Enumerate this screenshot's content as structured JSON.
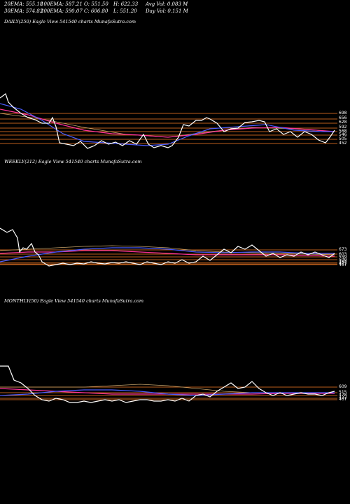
{
  "header": {
    "row1": {
      "ema20": "20EMA: 555.18",
      "ema100": "100EMA: 587.21",
      "open": "O: 551.50",
      "high": "H: 622.33",
      "avgvol": "Avg Vol: 0.083 M"
    },
    "row2": {
      "ema30": "30EMA: 574.83",
      "ema200": "200EMA: 590.07",
      "close": "C: 606.80",
      "low": "L: 551.20",
      "dayvol": "Day Vol: 0.151 M"
    }
  },
  "chart_data": [
    {
      "type": "line",
      "title": "DAILY(250) Eagle  View  541540  charts MunafaSutra.com",
      "levels": [
        "698",
        "656",
        "628",
        "592",
        "568",
        "546",
        "505",
        "452"
      ],
      "colors": {
        "price": "#ffffff",
        "ema_short": "#4a5cff",
        "ema_long": "#ff3399",
        "ema_mid": "#c8a46a",
        "level": "#d2691e"
      }
    },
    {
      "type": "line",
      "title": "WEEKLY(212) Eagle  View  541540  charts MunafaSutra.com",
      "levels": [
        "673",
        "603",
        "559",
        "509",
        "462",
        "427",
        "407"
      ],
      "colors": {
        "price": "#ffffff",
        "ema_short": "#4a5cff",
        "ema_long": "#ff3399",
        "ema_mid": "#c8a46a",
        "level": "#d2691e"
      }
    },
    {
      "type": "line",
      "title": "MONTHLY(50) Eagle  View  541540  charts MunafaSutra.com",
      "levels": [
        "609",
        "515",
        "478",
        "427",
        "407"
      ],
      "colors": {
        "price": "#ffffff",
        "ema_short": "#4a5cff",
        "ema_long": "#ff3399",
        "ema_mid": "#c8a46a",
        "level": "#d2691e"
      }
    }
  ]
}
